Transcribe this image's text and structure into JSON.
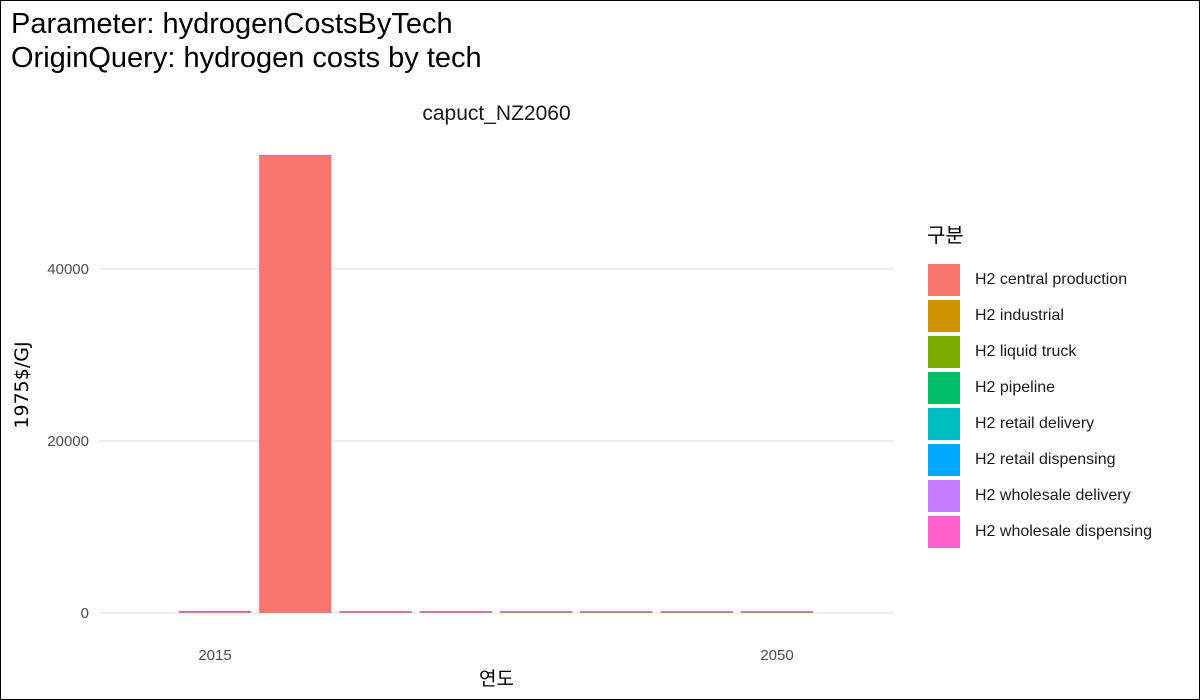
{
  "title_lines": [
    "Parameter: hydrogenCostsByTech",
    "OriginQuery: hydrogen costs by tech"
  ],
  "chart_data": {
    "type": "bar",
    "facet_title": "capuct_NZ2060",
    "xlabel": "연도",
    "ylabel": "1975$/GJ",
    "x": [
      2015,
      2020,
      2025,
      2030,
      2035,
      2040,
      2045,
      2050
    ],
    "x_ticks": [
      "2015",
      "2050"
    ],
    "x_tick_values": [
      2015,
      2050
    ],
    "y_ticks": [
      "0",
      "20000",
      "40000"
    ],
    "y_tick_values": [
      0,
      20000,
      40000
    ],
    "ylim": [
      0,
      56000
    ],
    "grid": true,
    "stacked": true,
    "legend_title": "구분",
    "legend_position": "right",
    "series": [
      {
        "name": "H2 central production",
        "color": "#F8766D",
        "values": [
          180,
          53200,
          170,
          160,
          150,
          150,
          150,
          150
        ]
      },
      {
        "name": "H2 industrial",
        "color": "#CD9600",
        "values": [
          5,
          5,
          5,
          5,
          5,
          5,
          5,
          5
        ]
      },
      {
        "name": "H2 liquid truck",
        "color": "#7CAE00",
        "values": [
          8,
          8,
          8,
          8,
          8,
          8,
          8,
          8
        ]
      },
      {
        "name": "H2 pipeline",
        "color": "#00BE67",
        "values": [
          5,
          5,
          5,
          5,
          5,
          5,
          5,
          5
        ]
      },
      {
        "name": "H2 retail delivery",
        "color": "#00BFC4",
        "values": [
          10,
          10,
          10,
          10,
          10,
          10,
          10,
          10
        ]
      },
      {
        "name": "H2 retail dispensing",
        "color": "#00A9FF",
        "values": [
          12,
          12,
          12,
          12,
          12,
          12,
          12,
          12
        ]
      },
      {
        "name": "H2 wholesale delivery",
        "color": "#C77CFF",
        "values": [
          10,
          10,
          10,
          10,
          10,
          10,
          10,
          10
        ]
      },
      {
        "name": "H2 wholesale dispensing",
        "color": "#FF61CC",
        "values": [
          15,
          15,
          15,
          15,
          15,
          15,
          15,
          15
        ]
      }
    ]
  }
}
